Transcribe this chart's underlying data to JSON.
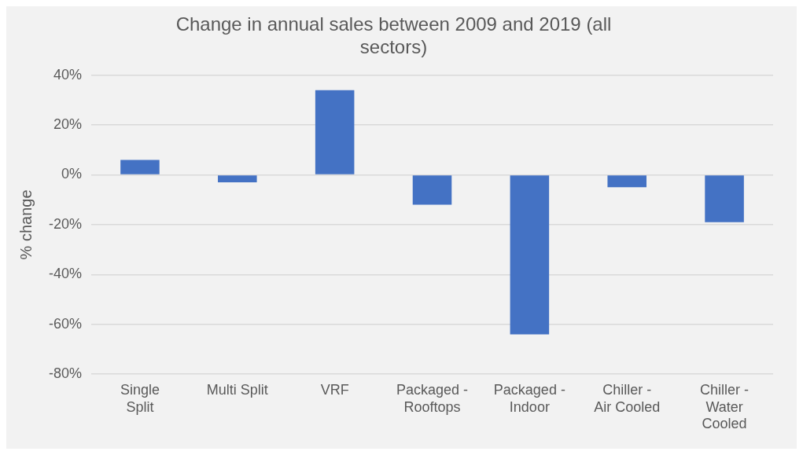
{
  "chart_data": {
    "type": "bar",
    "title": "Change in annual sales between 2009 and 2019 (all sectors)",
    "ylabel": "% change",
    "categories": [
      "Single Split",
      "Multi Split",
      "VRF",
      "Packaged - Rooftops",
      "Packaged - Indoor",
      "Chiller - Air Cooled",
      "Chiller - Water Cooled"
    ],
    "values": [
      6,
      -3,
      34,
      -12,
      -64,
      -5,
      -19
    ],
    "color": "#4472c4",
    "ylim": [
      -80,
      40
    ],
    "yticks": [
      {
        "value": -80,
        "label": "-80%"
      },
      {
        "value": -60,
        "label": "-60%"
      },
      {
        "value": -40,
        "label": "-40%"
      },
      {
        "value": -20,
        "label": "-20%"
      },
      {
        "value": 0,
        "label": "0%"
      },
      {
        "value": 20,
        "label": "20%"
      },
      {
        "value": 40,
        "label": "40%"
      }
    ],
    "grid": "y",
    "legend": false
  }
}
